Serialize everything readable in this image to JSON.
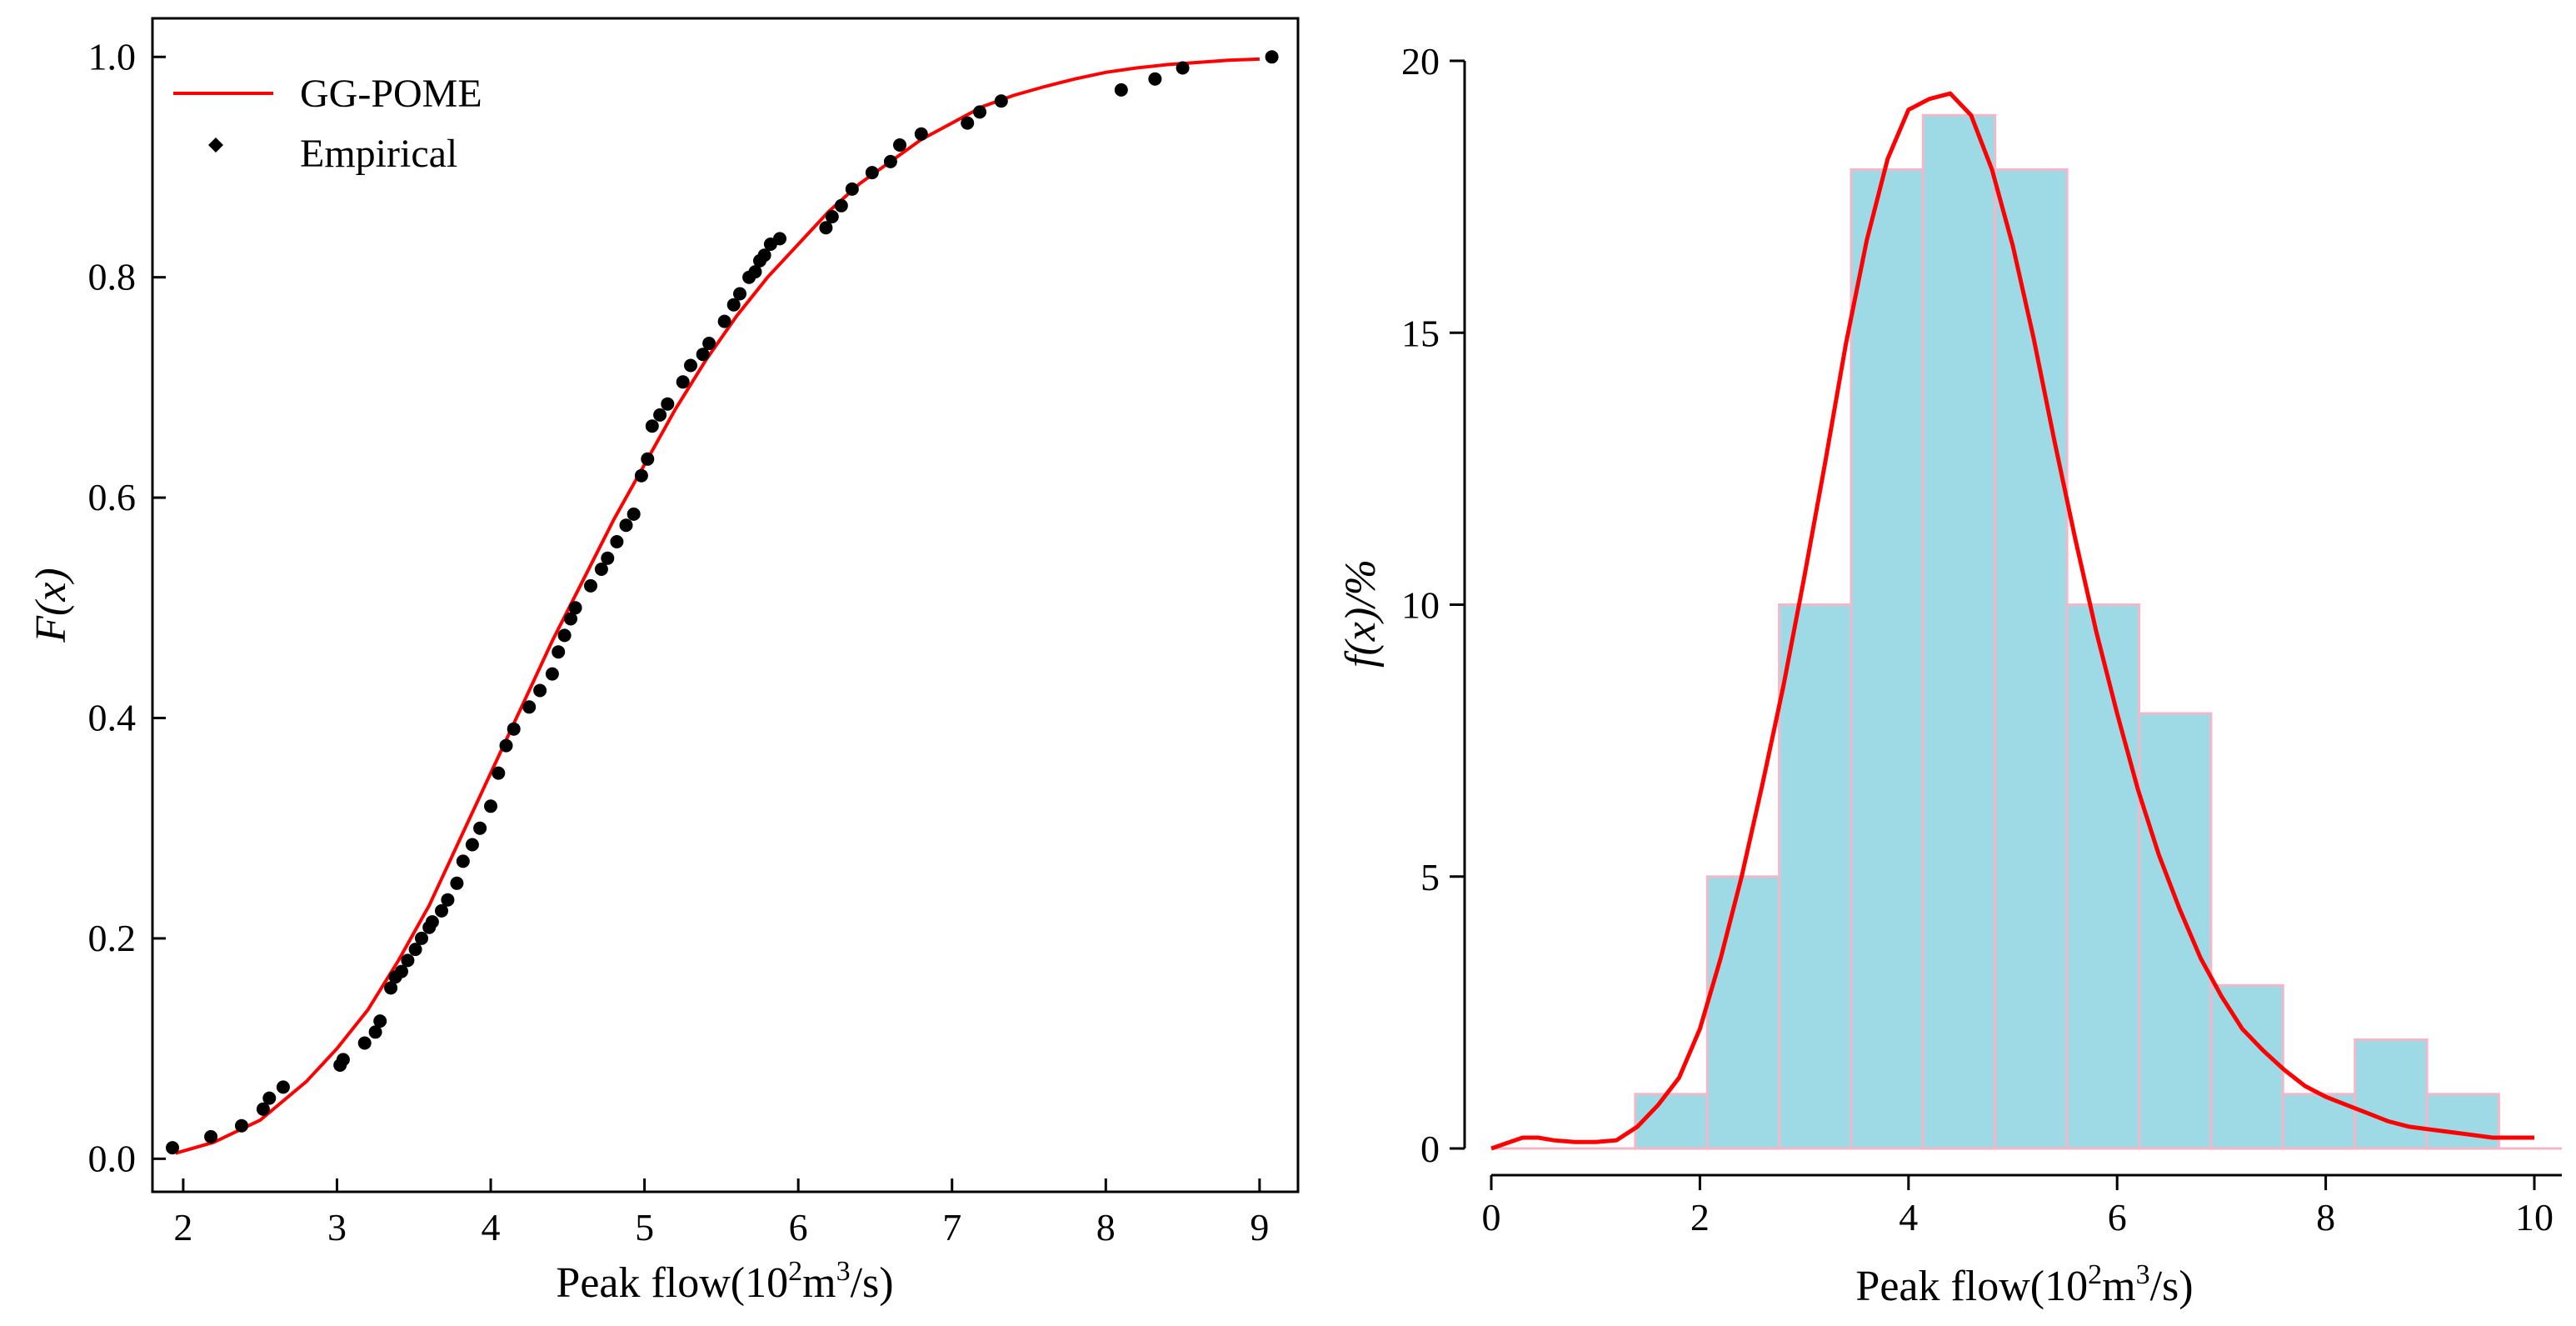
{
  "colors": {
    "fit_line": "#ff0000",
    "points": "#000000",
    "bar_fill": "#9ed9e6",
    "bar_edge": "#f2b8c8"
  },
  "chart_data": [
    {
      "type": "scatter",
      "title": "",
      "xlabel": "Peak flow(10",
      "xlabel_sup": "2",
      "xlabel_mid": "m",
      "xlabel_sup2": "3",
      "xlabel_end": "/s)",
      "ylabel": "F(x)",
      "xlim": [
        1.8,
        9.25
      ],
      "ylim": [
        -0.03,
        1.035
      ],
      "xticks": [
        2,
        3,
        4,
        5,
        6,
        7,
        8,
        9
      ],
      "yticks": [
        0.0,
        0.2,
        0.4,
        0.6,
        0.8,
        1.0
      ],
      "ytick_labels": [
        "0.0",
        "0.2",
        "0.4",
        "0.6",
        "0.8",
        "1.0"
      ],
      "legend": {
        "position": "top-left",
        "entries": [
          "GG-POME",
          "Empirical"
        ]
      },
      "series": [
        {
          "name": "GG-POME",
          "kind": "line",
          "x": [
            1.95,
            2.2,
            2.5,
            2.8,
            3.0,
            3.2,
            3.4,
            3.6,
            3.8,
            4.0,
            4.2,
            4.4,
            4.6,
            4.8,
            5.0,
            5.2,
            5.4,
            5.6,
            5.8,
            6.0,
            6.2,
            6.4,
            6.6,
            6.8,
            7.0,
            7.2,
            7.4,
            7.6,
            7.8,
            8.0,
            8.2,
            8.4,
            8.6,
            8.8,
            9.0
          ],
          "y": [
            0.005,
            0.015,
            0.035,
            0.07,
            0.1,
            0.135,
            0.18,
            0.23,
            0.29,
            0.35,
            0.41,
            0.47,
            0.525,
            0.58,
            0.63,
            0.68,
            0.725,
            0.765,
            0.8,
            0.83,
            0.86,
            0.885,
            0.905,
            0.925,
            0.94,
            0.955,
            0.965,
            0.973,
            0.98,
            0.986,
            0.99,
            0.993,
            0.995,
            0.997,
            0.998
          ]
        },
        {
          "name": "Empirical",
          "kind": "points",
          "x": [
            1.93,
            2.18,
            2.38,
            2.52,
            2.56,
            2.65,
            3.02,
            3.04,
            3.18,
            3.25,
            3.28,
            3.35,
            3.38,
            3.42,
            3.46,
            3.51,
            3.55,
            3.6,
            3.62,
            3.68,
            3.72,
            3.78,
            3.82,
            3.88,
            3.93,
            4.0,
            4.05,
            4.1,
            4.15,
            4.25,
            4.32,
            4.4,
            4.44,
            4.48,
            4.52,
            4.55,
            4.65,
            4.72,
            4.76,
            4.82,
            4.88,
            4.93,
            4.98,
            5.02,
            5.05,
            5.1,
            5.15,
            5.25,
            5.3,
            5.38,
            5.42,
            5.52,
            5.58,
            5.62,
            5.68,
            5.72,
            5.75,
            5.78,
            5.82,
            5.88,
            6.18,
            6.22,
            6.28,
            6.35,
            6.48,
            6.6,
            6.66,
            6.8,
            7.1,
            7.18,
            7.32,
            8.1,
            8.32,
            8.5,
            9.08
          ],
          "y": [
            0.01,
            0.02,
            0.03,
            0.045,
            0.055,
            0.065,
            0.085,
            0.09,
            0.105,
            0.115,
            0.125,
            0.155,
            0.165,
            0.17,
            0.18,
            0.19,
            0.2,
            0.21,
            0.215,
            0.225,
            0.235,
            0.25,
            0.27,
            0.285,
            0.3,
            0.32,
            0.35,
            0.375,
            0.39,
            0.41,
            0.425,
            0.44,
            0.46,
            0.475,
            0.49,
            0.5,
            0.52,
            0.535,
            0.545,
            0.56,
            0.575,
            0.585,
            0.62,
            0.635,
            0.665,
            0.675,
            0.685,
            0.705,
            0.72,
            0.73,
            0.74,
            0.76,
            0.775,
            0.785,
            0.8,
            0.805,
            0.815,
            0.82,
            0.83,
            0.835,
            0.845,
            0.855,
            0.865,
            0.88,
            0.895,
            0.905,
            0.92,
            0.93,
            0.94,
            0.95,
            0.96,
            0.97,
            0.98,
            0.99,
            1.0
          ]
        }
      ]
    },
    {
      "type": "bar",
      "title": "",
      "xlabel": "Peak flow(10",
      "xlabel_sup": "2",
      "xlabel_mid": "m",
      "xlabel_sup2": "3",
      "xlabel_end": "/s)",
      "ylabel": "f(x)/%",
      "xlim": [
        -0.15,
        10.3
      ],
      "ylim": [
        -0.1,
        20.4
      ],
      "xticks": [
        0,
        2,
        4,
        6,
        8,
        10
      ],
      "yticks": [
        0,
        5,
        10,
        15,
        20
      ],
      "bin_edges": [
        1.38,
        2.07,
        2.76,
        3.45,
        4.14,
        4.83,
        5.52,
        6.21,
        6.9,
        7.59,
        8.28,
        8.97,
        9.66
      ],
      "values": [
        1,
        5,
        10,
        18,
        19,
        18,
        10,
        8,
        3,
        1,
        2,
        1
      ],
      "curve": {
        "name": "density",
        "x": [
          0,
          0.15,
          0.3,
          0.45,
          0.6,
          0.8,
          1.0,
          1.2,
          1.4,
          1.6,
          1.8,
          2.0,
          2.2,
          2.4,
          2.6,
          2.8,
          3.0,
          3.2,
          3.4,
          3.6,
          3.8,
          4.0,
          4.2,
          4.4,
          4.6,
          4.8,
          5.0,
          5.2,
          5.4,
          5.6,
          5.8,
          6.0,
          6.2,
          6.4,
          6.6,
          6.8,
          7.0,
          7.2,
          7.4,
          7.6,
          7.8,
          8.0,
          8.2,
          8.4,
          8.6,
          8.8,
          9.0,
          9.2,
          9.4,
          9.6,
          9.8,
          10.0
        ],
        "y": [
          0,
          0.1,
          0.2,
          0.2,
          0.15,
          0.12,
          0.12,
          0.15,
          0.4,
          0.8,
          1.3,
          2.2,
          3.5,
          5.0,
          6.7,
          8.5,
          10.5,
          12.6,
          14.8,
          16.7,
          18.2,
          19.1,
          19.3,
          19.4,
          19.0,
          18.0,
          16.6,
          14.9,
          13.0,
          11.2,
          9.5,
          8.0,
          6.6,
          5.4,
          4.4,
          3.5,
          2.8,
          2.2,
          1.8,
          1.45,
          1.15,
          0.95,
          0.8,
          0.65,
          0.5,
          0.4,
          0.35,
          0.3,
          0.25,
          0.2,
          0.2,
          0.2
        ]
      }
    }
  ]
}
